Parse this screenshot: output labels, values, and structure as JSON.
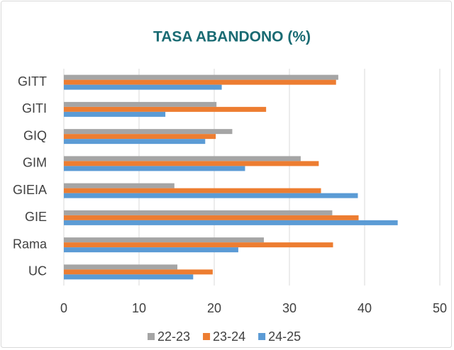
{
  "chart_data": {
    "type": "hbar",
    "title": "TASA ABANDONO (%)",
    "categories": [
      "GITT",
      "GITI",
      "GIQ",
      "GIM",
      "GIEIA",
      "GIE",
      "Rama",
      "UC"
    ],
    "series": [
      {
        "name": "22-23",
        "color": "#a5a5a5",
        "values": [
          36.5,
          20.3,
          22.4,
          31.5,
          14.7,
          35.7,
          26.6,
          15.1
        ]
      },
      {
        "name": "23-24",
        "color": "#ed7d31",
        "values": [
          36.2,
          26.9,
          20.2,
          33.9,
          34.2,
          39.2,
          35.8,
          19.8
        ]
      },
      {
        "name": "24-25",
        "color": "#5b9bd5",
        "values": [
          21.0,
          13.5,
          18.8,
          24.1,
          39.1,
          44.4,
          23.2,
          17.2
        ]
      }
    ],
    "xlim": [
      0,
      50
    ],
    "xticks": [
      0,
      10,
      20,
      30,
      40,
      50
    ],
    "grid": true,
    "legend": "bottom",
    "title_color": "#1a6b73"
  }
}
